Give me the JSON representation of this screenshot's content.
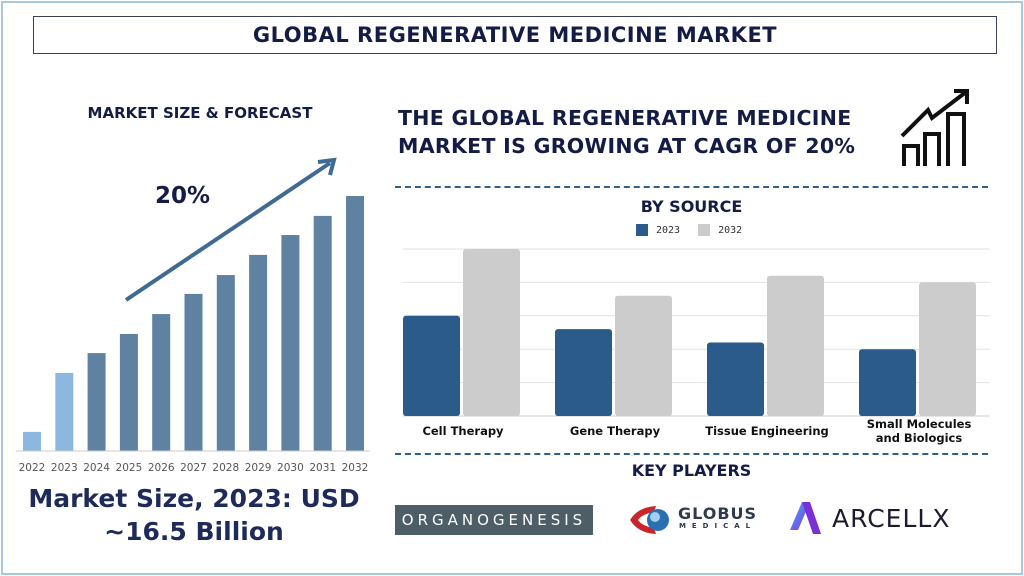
{
  "title": "GLOBAL REGENERATIVE MEDICINE MARKET",
  "left": {
    "heading": "MARKET SIZE & FORECAST",
    "cagr_label": "20%",
    "market_size_line1": "Market Size, 2023: USD",
    "market_size_line2": "~16.5 Billion"
  },
  "right": {
    "headline_line1": "THE GLOBAL REGENERATIVE MEDICINE",
    "headline_line2": "MARKET IS GROWING AT CAGR OF 20%",
    "icon": "growth-chart-icon",
    "key_players_title": "KEY PLAYERS",
    "key_players": [
      {
        "name": "ORGANOGENESIS"
      },
      {
        "name": "GLOBUS",
        "sub": "MEDICAL"
      },
      {
        "name": "ARCELLX"
      }
    ]
  },
  "colors": {
    "navy": "#141c45",
    "bar_actual": "#8cb8e0",
    "bar_forecast": "#5f82a3",
    "series_2023": "#2a5b8a",
    "series_2032": "#cccccc",
    "frame": "#a9c8e0"
  },
  "chart_data": [
    {
      "type": "bar",
      "title": "",
      "categories": [
        "2022",
        "2023",
        "2024",
        "2025",
        "2026",
        "2027",
        "2028",
        "2029",
        "2030",
        "2031",
        "2032"
      ],
      "values": [
        7.5,
        30.6,
        38.4,
        45.9,
        53.7,
        61.6,
        69,
        76.9,
        84.7,
        92.2,
        100
      ],
      "value_note_unit": "relative (2032 = 100)",
      "highlighted": [
        "2022",
        "2023"
      ],
      "annotation": "20%",
      "grid": false
    },
    {
      "type": "bar",
      "title": "BY SOURCE",
      "categories": [
        "Cell Therapy",
        "Gene Therapy",
        "Tissue Engineering",
        "Small Molecules and Biologics"
      ],
      "category_lines": [
        [
          "Cell Therapy"
        ],
        [
          "Gene Therapy"
        ],
        [
          "Tissue Engineering"
        ],
        [
          "Small Molecules",
          "and Biologics"
        ]
      ],
      "series": [
        {
          "name": "2023",
          "values": [
            3.0,
            2.6,
            2.2,
            2.0
          ]
        },
        {
          "name": "2032",
          "values": [
            5.0,
            3.6,
            4.2,
            4.0
          ]
        }
      ],
      "ylim": [
        0,
        5
      ],
      "grid": true,
      "legend": "top"
    }
  ]
}
